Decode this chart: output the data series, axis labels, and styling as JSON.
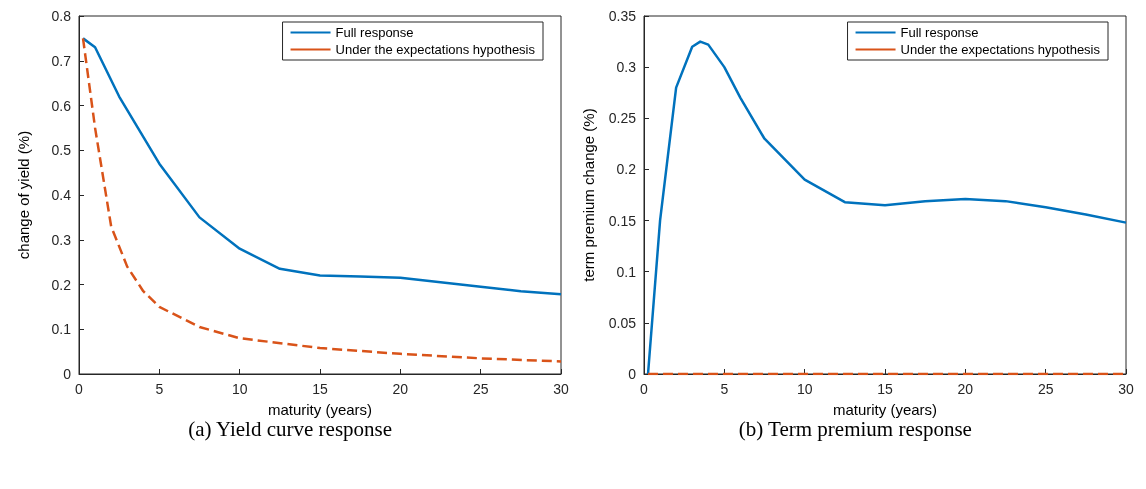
{
  "chart_data": [
    {
      "type": "line",
      "xlabel": "maturity (years)",
      "ylabel": "change of yield (%)",
      "annotations": [
        "(a) Yield curve response"
      ],
      "xlim": [
        0,
        30
      ],
      "xticks": [
        0,
        5,
        10,
        15,
        20,
        25,
        30
      ],
      "ylim": [
        0,
        0.8
      ],
      "yticks": [
        0,
        0.1,
        0.2,
        0.3,
        0.4,
        0.5,
        0.6,
        0.7,
        0.8
      ],
      "grid": false,
      "legend": "top right",
      "marker": "none",
      "series": [
        {
          "name": "Full response",
          "color": "#0072bd",
          "line_style": "solid",
          "x": [
            0.25,
            1,
            2.5,
            5,
            7.5,
            10,
            12.5,
            15,
            17.5,
            20,
            22.5,
            25,
            27.5,
            30
          ],
          "values": [
            0.75,
            0.73,
            0.62,
            0.47,
            0.35,
            0.28,
            0.235,
            0.22,
            0.218,
            0.215,
            0.205,
            0.195,
            0.185,
            0.178
          ]
        },
        {
          "name": "Under the expectations hypothesis",
          "color": "#d95319",
          "line_style": "dashed",
          "x": [
            0.25,
            1,
            2,
            3,
            4,
            5,
            7.5,
            10,
            15,
            20,
            25,
            30
          ],
          "values": [
            0.75,
            0.55,
            0.33,
            0.24,
            0.185,
            0.15,
            0.105,
            0.08,
            0.058,
            0.045,
            0.035,
            0.028
          ]
        }
      ]
    },
    {
      "type": "line",
      "xlabel": "maturity (years)",
      "ylabel": "term premium change (%)",
      "annotations": [
        "(b) Term premium response"
      ],
      "xlim": [
        0,
        30
      ],
      "xticks": [
        0,
        5,
        10,
        15,
        20,
        25,
        30
      ],
      "ylim": [
        0,
        0.35
      ],
      "yticks": [
        0,
        0.05,
        0.1,
        0.15,
        0.2,
        0.25,
        0.3,
        0.35
      ],
      "grid": false,
      "legend": "top right",
      "marker": "none",
      "series": [
        {
          "name": "Full response",
          "color": "#0072bd",
          "line_style": "solid",
          "x": [
            0.25,
            1,
            2,
            3,
            3.5,
            4,
            5,
            6,
            7.5,
            10,
            12.5,
            15,
            17.5,
            20,
            22.5,
            25,
            27.5,
            30
          ],
          "values": [
            0,
            0.15,
            0.28,
            0.32,
            0.325,
            0.322,
            0.3,
            0.27,
            0.23,
            0.19,
            0.168,
            0.165,
            0.169,
            0.171,
            0.169,
            0.163,
            0.156,
            0.148
          ]
        },
        {
          "name": "Under the expectations hypothesis",
          "color": "#d95319",
          "line_style": "dashed",
          "x": [
            0.25,
            10,
            20,
            30
          ],
          "values": [
            0,
            0,
            0,
            0
          ]
        }
      ]
    }
  ]
}
